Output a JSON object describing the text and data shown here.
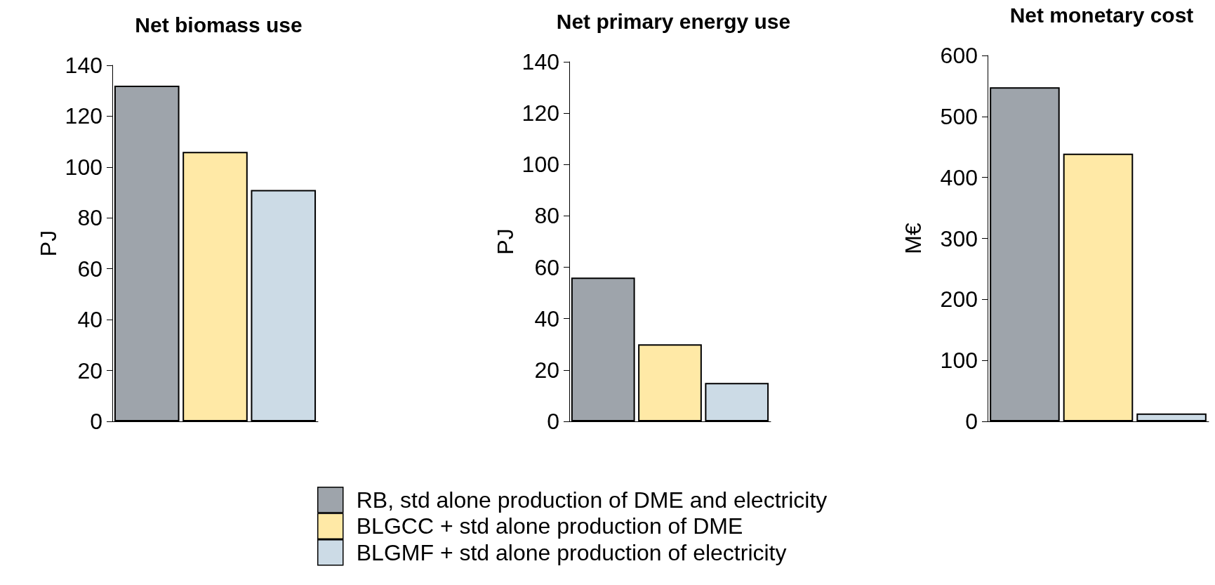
{
  "chart_data": [
    {
      "type": "bar",
      "title": "Net biomass use",
      "ylabel": "PJ",
      "categories": [
        null
      ],
      "ylim": [
        0,
        140
      ],
      "yticks": [
        0,
        20,
        40,
        60,
        80,
        100,
        120,
        140
      ],
      "grid": false,
      "legend": false,
      "series": [
        {
          "color": "#9ea4ab",
          "values": [
            132
          ]
        },
        {
          "color": "#ffe9a6",
          "values": [
            106
          ]
        },
        {
          "color": "#ccdbe6",
          "values": [
            91
          ]
        }
      ]
    },
    {
      "type": "bar",
      "title": "Net primary energy use",
      "ylabel": "PJ",
      "categories": [
        null
      ],
      "ylim": [
        0,
        140
      ],
      "yticks": [
        0,
        20,
        40,
        60,
        80,
        100,
        120,
        140
      ],
      "grid": false,
      "legend": "bottom",
      "series": [
        {
          "name": "RB, std alone production of DME and electricity",
          "color": "#9ea4ab",
          "values": [
            56
          ]
        },
        {
          "name": "BLGCC + std alone production of DME",
          "color": "#ffe9a6",
          "values": [
            30
          ]
        },
        {
          "name": "BLGMF + std alone production of electricity",
          "color": "#ccdbe6",
          "values": [
            15
          ]
        }
      ]
    },
    {
      "type": "bar",
      "title": "Net monetary cost",
      "ylabel": "M€",
      "categories": [
        null
      ],
      "ylim": [
        0,
        600
      ],
      "yticks": [
        0,
        100,
        200,
        300,
        400,
        500,
        600
      ],
      "grid": false,
      "legend": false,
      "series": [
        {
          "color": "#9ea4ab",
          "values": [
            548
          ]
        },
        {
          "color": "#ffe9a6",
          "values": [
            439
          ]
        },
        {
          "color": "#ccdbe6",
          "values": [
            13
          ]
        }
      ]
    }
  ]
}
